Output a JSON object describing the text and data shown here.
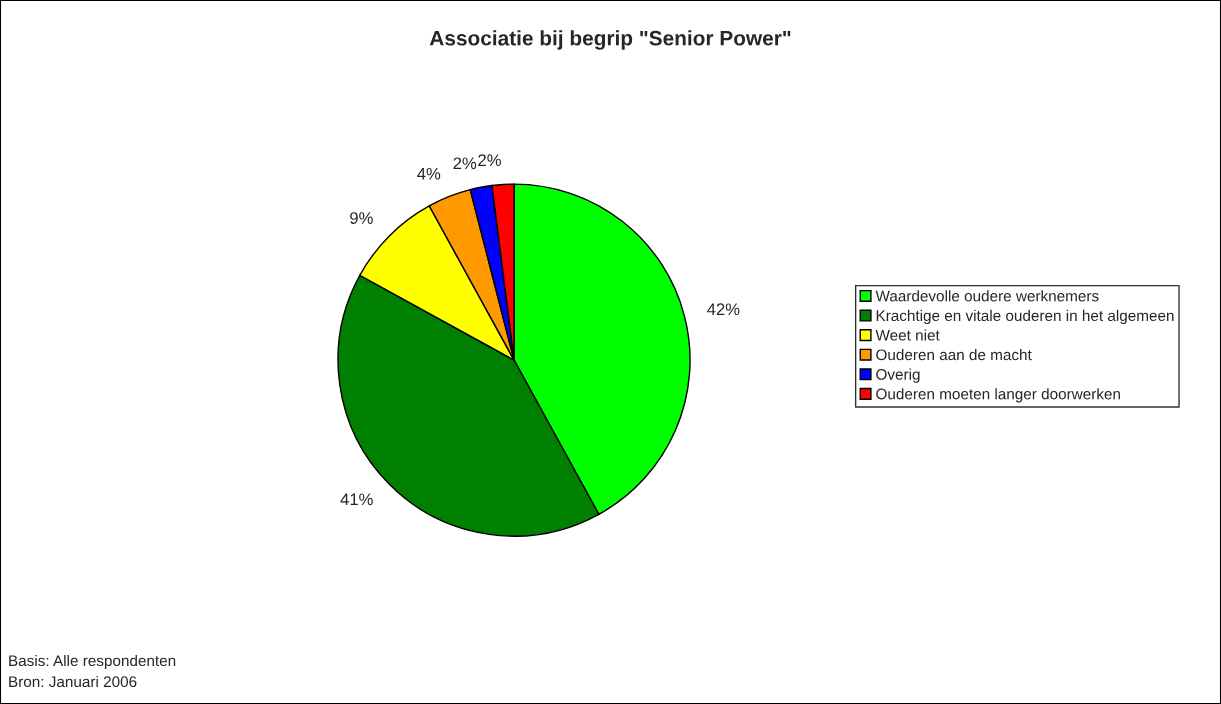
{
  "chart_data": {
    "type": "pie",
    "title": "Associatie bij begrip \"Senior Power\"",
    "categories": [
      "Waardevolle oudere werknemers",
      "Krachtige en vitale ouderen in het algemeen",
      "Weet niet",
      "Ouderen aan de macht",
      "Overig",
      "Ouderen moeten langer doorwerken"
    ],
    "values": [
      42,
      41,
      9,
      4,
      2,
      2
    ],
    "colors": [
      "#00ff00",
      "#008000",
      "#ffff00",
      "#ff9900",
      "#0000ff",
      "#ff0000"
    ],
    "value_labels": [
      "42%",
      "41%",
      "9%",
      "4%",
      "2%",
      "2%"
    ],
    "legend": "right",
    "annotations": [
      "Basis: Alle respondenten",
      "Bron: Januari 2006"
    ]
  }
}
